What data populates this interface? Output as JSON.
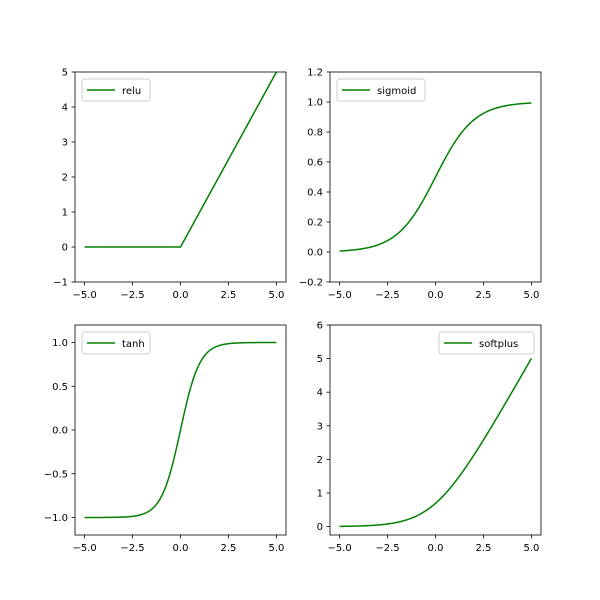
{
  "chart_data": [
    {
      "type": "line",
      "series": [
        {
          "name": "relu",
          "color": "#008000",
          "function": "relu",
          "x_range": [
            -5,
            5
          ]
        }
      ],
      "xlim": [
        -5.5,
        5.5
      ],
      "ylim": [
        -1,
        5
      ],
      "xticks": [
        -5,
        -2.5,
        0,
        2.5,
        5
      ],
      "xtick_labels": [
        "−5.0",
        "−2.5",
        "0.0",
        "2.5",
        "5.0"
      ],
      "yticks": [
        -1,
        0,
        1,
        2,
        3,
        4,
        5
      ],
      "ytick_labels": [
        "−1",
        "0",
        "1",
        "2",
        "3",
        "4",
        "5"
      ],
      "legend": "upper left",
      "grid": false
    },
    {
      "type": "line",
      "series": [
        {
          "name": "sigmoid",
          "color": "#008000",
          "function": "sigmoid",
          "x_range": [
            -5,
            5
          ]
        }
      ],
      "xlim": [
        -5.5,
        5.5
      ],
      "ylim": [
        -0.2,
        1.2
      ],
      "xticks": [
        -5,
        -2.5,
        0,
        2.5,
        5
      ],
      "xtick_labels": [
        "−5.0",
        "−2.5",
        "0.0",
        "2.5",
        "5.0"
      ],
      "yticks": [
        -0.2,
        0,
        0.2,
        0.4,
        0.6,
        0.8,
        1.0,
        1.2
      ],
      "ytick_labels": [
        "−0.2",
        "0.0",
        "0.2",
        "0.4",
        "0.6",
        "0.8",
        "1.0",
        "1.2"
      ],
      "legend": "upper left",
      "grid": false
    },
    {
      "type": "line",
      "series": [
        {
          "name": "tanh",
          "color": "#008000",
          "function": "tanh",
          "x_range": [
            -5,
            5
          ]
        }
      ],
      "xlim": [
        -5.5,
        5.5
      ],
      "ylim": [
        -1.2,
        1.2
      ],
      "xticks": [
        -5,
        -2.5,
        0,
        2.5,
        5
      ],
      "xtick_labels": [
        "−5.0",
        "−2.5",
        "0.0",
        "2.5",
        "5.0"
      ],
      "yticks": [
        -1.0,
        -0.5,
        0.0,
        0.5,
        1.0
      ],
      "ytick_labels": [
        "−1.0",
        "−0.5",
        "0.0",
        "0.5",
        "1.0"
      ],
      "legend": "upper left",
      "grid": false
    },
    {
      "type": "line",
      "series": [
        {
          "name": "softplus",
          "color": "#008000",
          "function": "softplus",
          "x_range": [
            -5,
            5
          ]
        }
      ],
      "xlim": [
        -5.5,
        5.5
      ],
      "ylim": [
        -0.25,
        6
      ],
      "xticks": [
        -5,
        -2.5,
        0,
        2.5,
        5
      ],
      "xtick_labels": [
        "−5.0",
        "−2.5",
        "0.0",
        "2.5",
        "5.0"
      ],
      "yticks": [
        0,
        1,
        2,
        3,
        4,
        5,
        6
      ],
      "ytick_labels": [
        "0",
        "1",
        "2",
        "3",
        "4",
        "5",
        "6"
      ],
      "legend": "upper right",
      "grid": false
    }
  ]
}
